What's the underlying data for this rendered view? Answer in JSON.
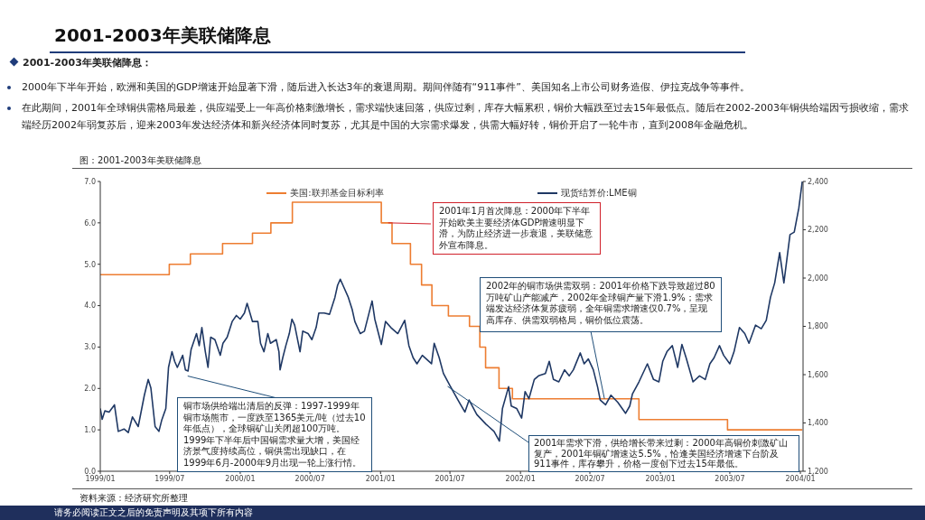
{
  "chart_data": {
    "type": "line",
    "title": "2001-2003年美联储降息",
    "subtitle": "图：2001-2003年美联储降息",
    "annotations": [
      "2001-2003年美联储降息：",
      "2000年下半年开始，欧洲和美国的GDP增速开始显著下滑，随后进入长达3年的衰退周期。期间伴随有“911事件”、美国知名上市公司财务造假、伊拉克战争等事件。",
      "在此期间，2001年全球铜供需格局最差，供应端受上一年高价格刺激增长，需求端快速回落，供应过剩，库存大幅累积，铜价大幅跌至过去15年最低点。随后在2002-2003年铜供给端因亏损收缩，需求端经历2002年弱复苏后，迎来2003年发达经济体和新兴经济体同时复苏，尤其是中国的大宗需求爆发，供需大幅好转，铜价开启了一轮牛市，直到2008年金融危机。",
      {
        "text": "2001年1月首次降息：2000年下半年开始欧美主要经济体GDP增速明显下滑，为防止经济进一步衰退，美联储意外宣布降息。",
        "x": "2001-01-21",
        "y": 6.0
      },
      {
        "text": "2002年的铜市场供需双弱：2001年价格下跌导致超过80万吨矿山产能减产，2002年全球铜产量下滑1.9%；需求端发达经济体复苏疲弱，全年铜需求增速仅0.7%，呈现高库存、供需双弱格局，铜价低位震荡。",
        "x": "2002-08-08",
        "y": 1.75
      },
      {
        "text": "铜市场供给端出清后的反弹：1997-1999年铜市场熊市，一度跌至1365美元/吨（过去10年低点），全球铜矿山关闭超100万吨。1999年下半年后中国铜需求量大增，美国经济景气度持续高位，铜供需出现缺口，在1999年6月-2000年9月出现一轮上涨行情。",
        "x": "1999-08-17",
        "y": 2.3
      },
      {
        "text": "2001年需求下滑，供给增长带来过剩：2000年高铜价刺激矿山复产，2001年铜矿增速达5.5%，恰逢美国经济增速下台阶及911事件，库存攀升，价格一度创下过去15年最低。",
        "x": "2001-06-25",
        "y": 2.05
      },
      "资料来源：经济研究所整理",
      "请务必阅读正文之后的免责声明及其项下所有内容"
    ],
    "xlim": [
      "1999-01-01",
      "2004-01-08"
    ],
    "xticks": [
      {
        "value": "1999-01",
        "label": "1999/01"
      },
      {
        "value": "1999-07",
        "label": "1999/07"
      },
      {
        "value": "2000-01",
        "label": "2000/01"
      },
      {
        "value": "2000-07",
        "label": "2000/07"
      },
      {
        "value": "2001-01",
        "label": "2001/01"
      },
      {
        "value": "2001-07",
        "label": "2001/07"
      },
      {
        "value": "2002-01",
        "label": "2002/01"
      },
      {
        "value": "2002-07",
        "label": "2002/07"
      },
      {
        "value": "2003-01",
        "label": "2003/01"
      },
      {
        "value": "2003-07",
        "label": "2003/07"
      },
      {
        "value": "2004-01",
        "label": "2004/01"
      }
    ],
    "ylim": [
      0,
      7
    ],
    "yticks": [
      {
        "value": 0,
        "label": "0.0"
      },
      {
        "value": 1,
        "label": "1.0"
      },
      {
        "value": 2,
        "label": "2.0"
      },
      {
        "value": 3,
        "label": "3.0"
      },
      {
        "value": 4,
        "label": "4.0"
      },
      {
        "value": 5,
        "label": "5.0"
      },
      {
        "value": 6,
        "label": "6.0"
      },
      {
        "value": 7,
        "label": "7.0"
      }
    ],
    "y2lim": [
      1200,
      2400
    ],
    "y2ticks": [
      {
        "value": 1200,
        "label": "1,200"
      },
      {
        "value": 1400,
        "label": "1,400"
      },
      {
        "value": 1600,
        "label": "1,600"
      },
      {
        "value": 1800,
        "label": "1,800"
      },
      {
        "value": 2000,
        "label": "2,000"
      },
      {
        "value": 2200,
        "label": "2,200"
      },
      {
        "value": 2400,
        "label": "2,400"
      }
    ],
    "grid": false,
    "legend": "top",
    "marker": "none",
    "line_style": "solid",
    "series": [
      {
        "name": "美国:联邦基金目标利率",
        "type": "step",
        "color": "#ed7d31",
        "x": [
          "1999-01-01",
          "1999-06-30",
          "1999-08-24",
          "1999-11-16",
          "2000-02-02",
          "2000-03-21",
          "2000-05-16",
          "2001-01-03",
          "2001-01-31",
          "2001-03-20",
          "2001-04-18",
          "2001-05-15",
          "2001-06-27",
          "2001-08-21",
          "2001-09-17",
          "2001-10-02",
          "2001-11-06",
          "2001-12-11",
          "2002-11-06",
          "2003-06-25",
          "2004-01-06"
        ],
        "values": [
          4.75,
          5.0,
          5.25,
          5.5,
          5.75,
          6.0,
          6.5,
          6.0,
          5.5,
          5.0,
          4.5,
          4.0,
          3.75,
          3.5,
          3.0,
          2.5,
          2.0,
          1.75,
          1.25,
          1.0,
          1.0
        ]
      },
      {
        "name": "现货结算价:LME铜",
        "type": "line",
        "axis": "y2",
        "color": "#1f3864",
        "x": [
          "1999-01-01",
          "1999-01-06",
          "1999-01-13",
          "1999-01-24",
          "1999-02-07",
          "1999-02-17",
          "1999-03-04",
          "1999-03-15",
          "1999-03-26",
          "1999-04-10",
          "1999-04-26",
          "1999-05-06",
          "1999-05-13",
          "1999-05-24",
          "1999-06-03",
          "1999-06-10",
          "1999-06-21",
          "1999-06-28",
          "1999-07-07",
          "1999-07-14",
          "1999-07-21",
          "1999-08-04",
          "1999-08-11",
          "1999-08-18",
          "1999-08-26",
          "1999-09-09",
          "1999-09-16",
          "1999-09-23",
          "1999-10-02",
          "1999-10-09",
          "1999-10-16",
          "1999-10-27",
          "1999-11-10",
          "1999-11-17",
          "1999-11-28",
          "1999-12-11",
          "1999-12-22",
          "2000-01-01",
          "2000-01-12",
          "2000-01-19",
          "2000-02-02",
          "2000-02-16",
          "2000-02-23",
          "2000-03-03",
          "2000-03-13",
          "2000-03-20",
          "2000-04-04",
          "2000-04-11",
          "2000-04-14",
          "2000-04-21",
          "2000-04-29",
          "2000-05-08",
          "2000-05-15",
          "2000-05-22",
          "2000-06-05",
          "2000-06-12",
          "2000-06-26",
          "2000-07-06",
          "2000-07-17",
          "2000-07-24",
          "2000-08-07",
          "2000-08-21",
          "2000-09-04",
          "2000-09-11",
          "2000-09-18",
          "2000-09-25",
          "2000-10-09",
          "2000-10-19",
          "2000-10-26",
          "2000-11-09",
          "2000-11-20",
          "2000-12-10",
          "2000-12-17",
          "2001-01-03",
          "2001-01-14",
          "2001-01-28",
          "2001-02-15",
          "2001-03-05",
          "2001-03-16",
          "2001-03-27",
          "2001-04-06",
          "2001-04-20",
          "2001-05-14",
          "2001-05-21",
          "2001-06-03",
          "2001-06-14",
          "2001-07-01",
          "2001-07-22",
          "2001-08-09",
          "2001-08-20",
          "2001-09-09",
          "2001-10-03",
          "2001-10-10",
          "2001-10-24",
          "2001-11-07",
          "2001-11-15",
          "2001-12-01",
          "2001-12-08",
          "2001-12-22",
          "2002-01-04",
          "2002-01-13",
          "2002-01-23",
          "2002-02-06",
          "2002-02-17",
          "2002-03-07",
          "2002-03-17",
          "2002-03-28",
          "2002-04-11",
          "2002-04-26",
          "2002-05-08",
          "2002-05-19",
          "2002-06-06",
          "2002-06-16",
          "2002-06-27",
          "2002-07-10",
          "2002-07-21",
          "2002-07-28",
          "2002-08-11",
          "2002-08-25",
          "2002-09-12",
          "2002-10-02",
          "2002-10-13",
          "2002-10-20",
          "2002-11-06",
          "2002-11-28",
          "2002-12-14",
          "2002-12-28",
          "2003-01-07",
          "2003-01-18",
          "2003-02-01",
          "2003-02-15",
          "2003-02-26",
          "2003-03-09",
          "2003-03-27",
          "2003-04-13",
          "2003-04-28",
          "2003-05-10",
          "2003-05-21",
          "2003-06-04",
          "2003-06-15",
          "2003-07-01",
          "2003-07-12",
          "2003-07-26",
          "2003-08-09",
          "2003-08-20",
          "2003-09-06",
          "2003-09-21",
          "2003-10-04",
          "2003-10-15",
          "2003-10-26",
          "2003-11-08",
          "2003-11-19",
          "2003-11-27",
          "2003-12-05",
          "2003-12-16",
          "2003-12-28",
          "2004-01-06"
        ],
        "values": [
          1460,
          1415,
          1450,
          1445,
          1475,
          1365,
          1375,
          1360,
          1425,
          1385,
          1515,
          1580,
          1545,
          1385,
          1365,
          1410,
          1460,
          1630,
          1695,
          1655,
          1630,
          1680,
          1620,
          1615,
          1705,
          1770,
          1720,
          1795,
          1695,
          1630,
          1755,
          1745,
          1680,
          1730,
          1755,
          1820,
          1845,
          1830,
          1855,
          1895,
          1820,
          1820,
          1730,
          1695,
          1770,
          1730,
          1745,
          1695,
          1620,
          1670,
          1720,
          1770,
          1830,
          1805,
          1695,
          1780,
          1770,
          1745,
          1795,
          1855,
          1855,
          1850,
          1920,
          1970,
          1995,
          1970,
          1920,
          1870,
          1820,
          1770,
          1780,
          1905,
          1830,
          1725,
          1820,
          1795,
          1770,
          1825,
          1720,
          1670,
          1645,
          1680,
          1645,
          1730,
          1670,
          1605,
          1555,
          1495,
          1445,
          1495,
          1435,
          1395,
          1385,
          1365,
          1325,
          1460,
          1550,
          1470,
          1460,
          1420,
          1530,
          1500,
          1580,
          1595,
          1605,
          1655,
          1580,
          1570,
          1620,
          1595,
          1620,
          1690,
          1645,
          1665,
          1620,
          1550,
          1495,
          1475,
          1515,
          1485,
          1440,
          1470,
          1520,
          1570,
          1645,
          1580,
          1570,
          1655,
          1695,
          1720,
          1630,
          1725,
          1670,
          1570,
          1595,
          1580,
          1645,
          1670,
          1720,
          1680,
          1645,
          1695,
          1795,
          1770,
          1730,
          1805,
          1790,
          1825,
          1920,
          1980,
          2105,
          1980,
          2080,
          2180,
          2190,
          2290,
          2400
        ]
      }
    ]
  }
}
